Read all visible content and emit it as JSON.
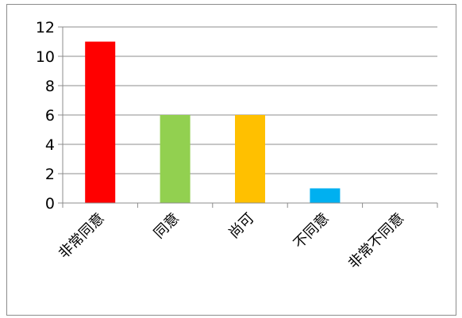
{
  "chart_data": {
    "type": "bar",
    "categories": [
      "非常同意",
      "同意",
      "尚可",
      "不同意",
      "非常不同意"
    ],
    "values": [
      11,
      6,
      6,
      1,
      0
    ],
    "colors": [
      "#ff0000",
      "#92d050",
      "#ffc000",
      "#00b0f0",
      "#7030a0"
    ],
    "title": "",
    "xlabel": "",
    "ylabel": "",
    "ylim": [
      0,
      12
    ],
    "yticks": [
      0,
      2,
      4,
      6,
      8,
      10,
      12
    ],
    "grid": true,
    "legend": "none"
  }
}
